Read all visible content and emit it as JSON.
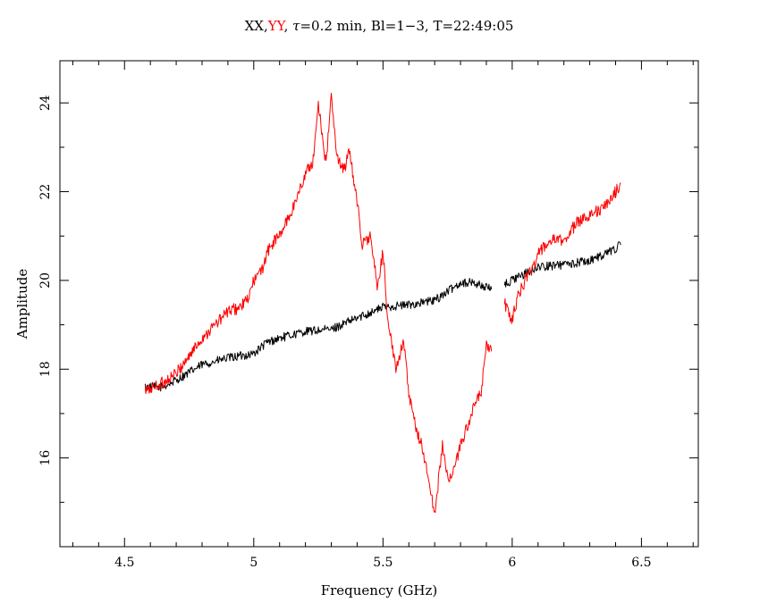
{
  "chart_data": {
    "type": "line",
    "title_parts": {
      "xx": "XX,",
      "yy": "YY",
      "rest_tau_symbol": "τ",
      "rest": "=0.2 min, Bl=1−3, T=22:49:05",
      "separator": ", "
    },
    "xlabel": "Frequency (GHz)",
    "ylabel": "Amplitude",
    "xlim": [
      4.25,
      6.72
    ],
    "ylim": [
      14.0,
      24.95
    ],
    "x_ticks": [
      4.5,
      5.0,
      5.5,
      6.0,
      6.5
    ],
    "x_tick_labels": [
      "4.5",
      "5",
      "5.5",
      "6",
      "6.5"
    ],
    "y_ticks": [
      16,
      18,
      20,
      22,
      24
    ],
    "y_tick_labels": [
      "16",
      "18",
      "20",
      "22",
      "24"
    ],
    "grid": false,
    "colors": {
      "xx": "#000000",
      "yy": "#ff0000",
      "axes": "#000000",
      "background": "#ffffff"
    },
    "series": [
      {
        "name": "XX",
        "color": "#000000",
        "segments": [
          {
            "x": [
              4.58,
              4.65,
              4.7,
              4.8,
              4.9,
              5.0,
              5.05,
              5.1,
              5.2,
              5.3,
              5.4,
              5.5,
              5.6,
              5.7,
              5.75,
              5.8,
              5.85,
              5.92
            ],
            "y": [
              17.6,
              17.6,
              17.75,
              18.1,
              18.25,
              18.35,
              18.6,
              18.7,
              18.85,
              18.9,
              19.15,
              19.4,
              19.45,
              19.55,
              19.75,
              19.95,
              19.95,
              19.8
            ]
          },
          {
            "x": [
              5.97,
              6.0,
              6.05,
              6.1,
              6.2,
              6.3,
              6.38,
              6.42
            ],
            "y": [
              19.9,
              20.0,
              20.15,
              20.3,
              20.35,
              20.45,
              20.65,
              20.8
            ]
          }
        ]
      },
      {
        "name": "YY",
        "color": "#ff0000",
        "segments": [
          {
            "x": [
              4.58,
              4.65,
              4.7,
              4.75,
              4.8,
              4.85,
              4.9,
              4.95,
              4.98,
              5.0,
              5.03,
              5.05,
              5.08,
              5.1,
              5.15,
              5.2,
              5.23,
              5.25,
              5.28,
              5.3,
              5.32,
              5.35,
              5.37,
              5.4,
              5.42,
              5.45,
              5.48,
              5.5,
              5.52,
              5.55,
              5.58,
              5.6,
              5.63,
              5.65,
              5.68,
              5.7,
              5.73,
              5.75,
              5.78,
              5.8,
              5.85,
              5.88,
              5.9,
              5.92
            ],
            "y": [
              17.5,
              17.7,
              17.9,
              18.3,
              18.7,
              19.0,
              19.3,
              19.4,
              19.6,
              20.0,
              20.2,
              20.6,
              20.9,
              21.0,
              21.6,
              22.4,
              22.7,
              24.0,
              22.6,
              24.2,
              22.8,
              22.5,
              22.9,
              21.8,
              20.8,
              21.0,
              19.8,
              20.7,
              19.0,
              18.0,
              18.7,
              17.4,
              16.6,
              16.3,
              15.4,
              14.7,
              16.3,
              15.5,
              15.8,
              16.3,
              17.1,
              17.5,
              18.5,
              18.4
            ]
          },
          {
            "x": [
              5.97,
              6.0,
              6.02,
              6.05,
              6.08,
              6.1,
              6.15,
              6.2,
              6.25,
              6.3,
              6.35,
              6.4,
              6.42
            ],
            "y": [
              19.5,
              19.1,
              19.6,
              20.0,
              20.3,
              20.6,
              20.9,
              20.9,
              21.3,
              21.5,
              21.6,
              22.0,
              22.2
            ]
          }
        ]
      }
    ]
  }
}
